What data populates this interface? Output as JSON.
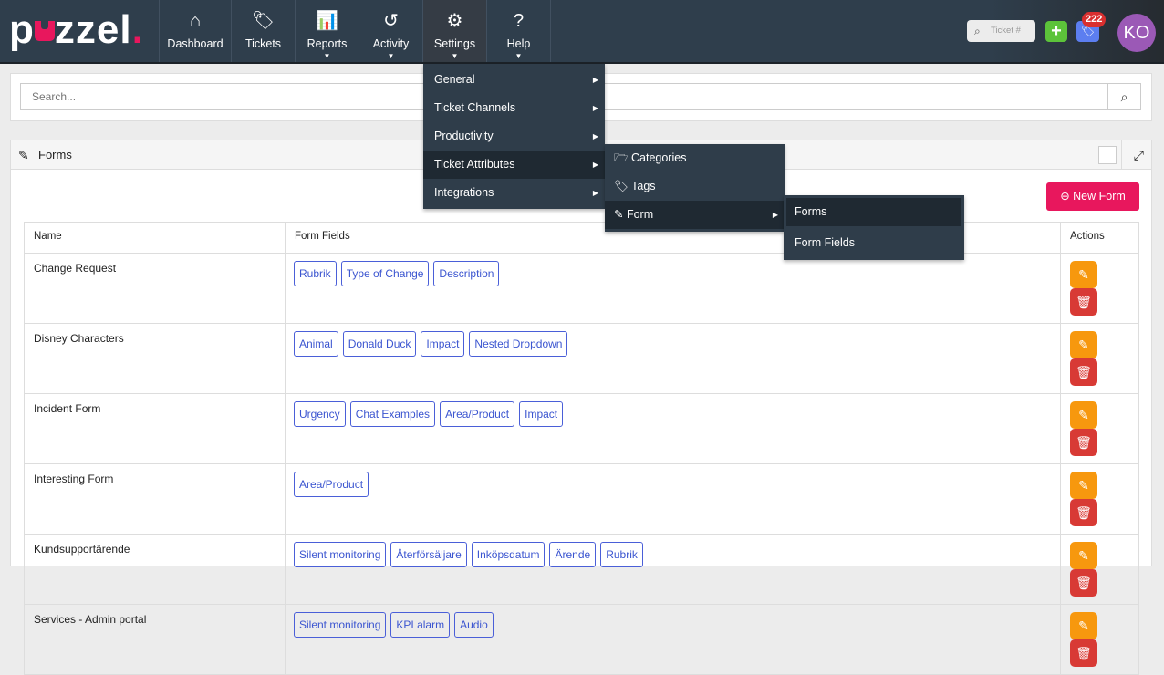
{
  "nav": {
    "logo": "puzzel",
    "items": [
      {
        "label": "Dashboard",
        "icon": "home-icon",
        "glyph": "⌂",
        "caret": false
      },
      {
        "label": "Tickets",
        "icon": "tags-icon",
        "glyph": "🏷",
        "caret": false
      },
      {
        "label": "Reports",
        "icon": "bar-chart-icon",
        "glyph": "📊",
        "caret": true
      },
      {
        "label": "Activity",
        "icon": "history-icon",
        "glyph": "↺",
        "caret": true
      },
      {
        "label": "Settings",
        "icon": "gear-icon",
        "glyph": "⚙",
        "caret": true
      },
      {
        "label": "Help",
        "icon": "question-circle-icon",
        "glyph": "?",
        "caret": true
      }
    ],
    "ticket_placeholder": "Ticket #",
    "badge_count": "222",
    "avatar": "KO"
  },
  "search": {
    "placeholder": "Search..."
  },
  "panel": {
    "title": "Forms",
    "new_form": "New Form"
  },
  "table": {
    "headers": [
      "Name",
      "Form Fields",
      "Actions"
    ],
    "rows": [
      {
        "name": "Change Request",
        "fields": [
          "Rubrik",
          "Type of Change",
          "Description"
        ]
      },
      {
        "name": "Disney Characters",
        "fields": [
          "Animal",
          "Donald Duck",
          "Impact",
          "Nested Dropdown"
        ]
      },
      {
        "name": "Incident Form",
        "fields": [
          "Urgency",
          "Chat Examples",
          "Area/Product",
          "Impact"
        ]
      },
      {
        "name": "Interesting Form",
        "fields": [
          "Area/Product"
        ]
      },
      {
        "name": "Kundsupportärende",
        "fields": [
          "Silent monitoring",
          "Återförsäljare",
          "Inköpsdatum",
          "Ärende",
          "Rubrik"
        ]
      },
      {
        "name": "Services - Admin portal",
        "fields": [
          "Silent monitoring",
          "KPI alarm",
          "Audio"
        ]
      }
    ]
  },
  "settings_menu": {
    "items": [
      "General",
      "Ticket Channels",
      "Productivity",
      "Ticket Attributes",
      "Integrations"
    ],
    "attributes_submenu": [
      "Categories",
      "Tags",
      "Form"
    ],
    "form_submenu": [
      "Forms",
      "Form Fields"
    ]
  }
}
